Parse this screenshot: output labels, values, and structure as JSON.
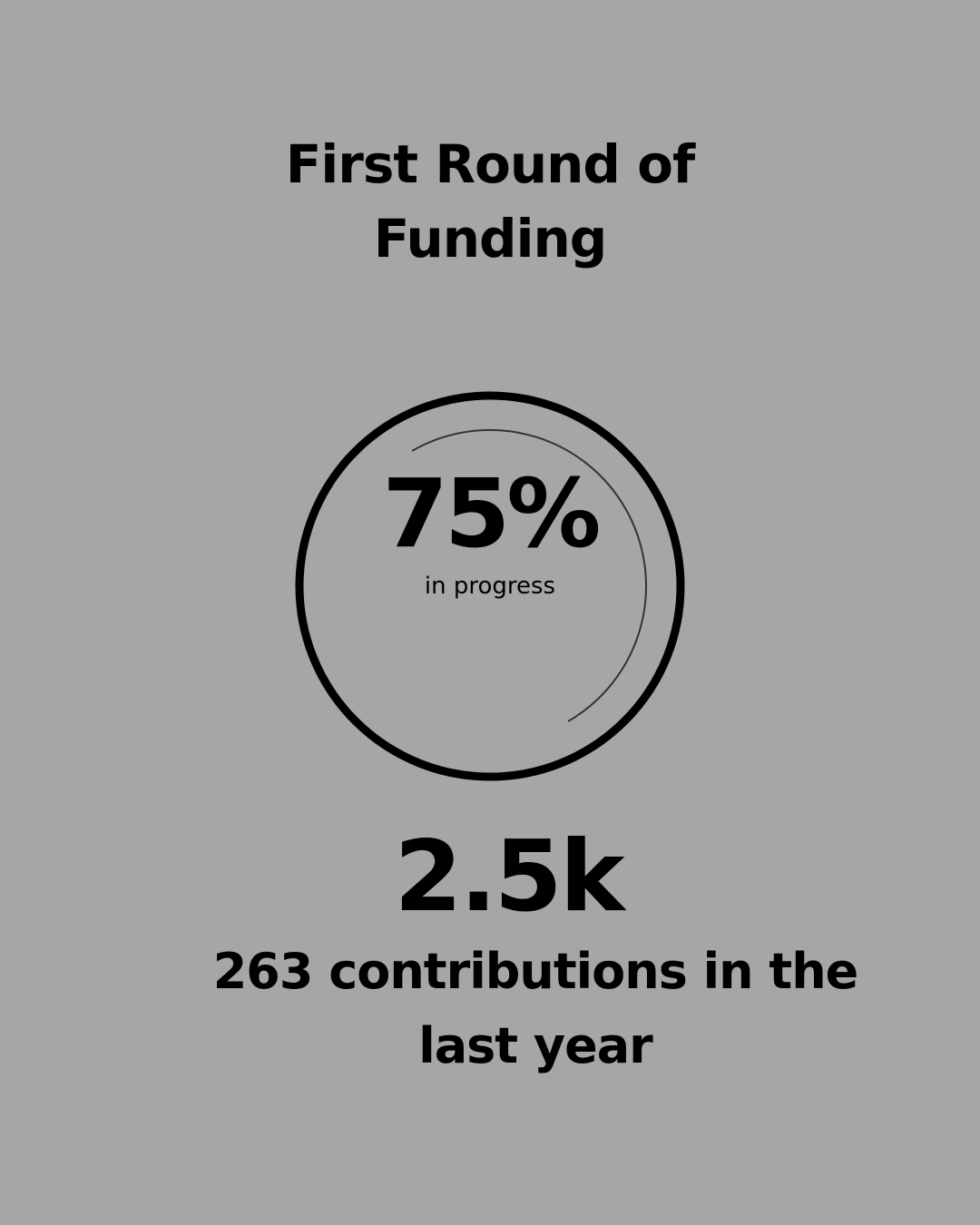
{
  "header": {
    "title_line1": "First Round of",
    "title_line2": "Funding"
  },
  "progress": {
    "value_percent": 75,
    "label": "75%",
    "caption": "in progress"
  },
  "stats": {
    "value": "2.5k",
    "caption_line1": "263 contributions in the",
    "caption_line2": "last year"
  },
  "colors": {
    "background": "#a6a6a6",
    "foreground": "#000000",
    "inner_arc": "#333333"
  }
}
